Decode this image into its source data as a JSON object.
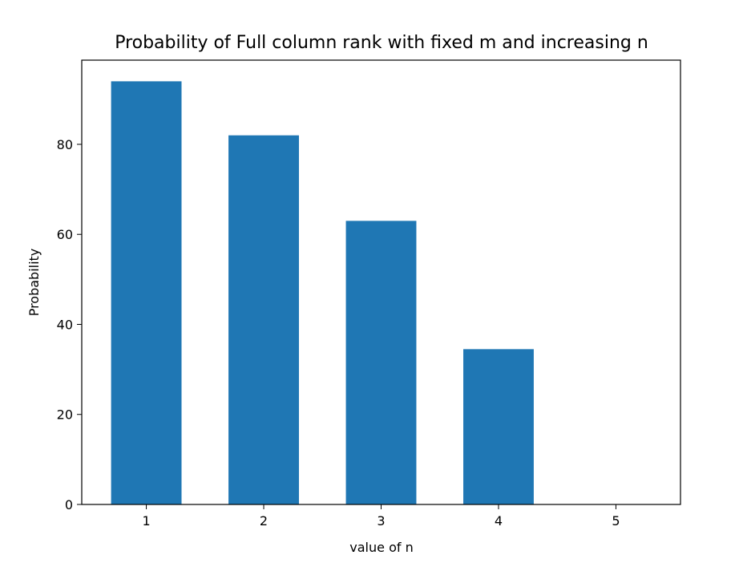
{
  "chart_data": {
    "type": "bar",
    "title": "Probability of Full column rank with fixed m and increasing n",
    "xlabel": "value of n",
    "ylabel": "Probability",
    "categories": [
      "1",
      "2",
      "3",
      "4",
      "5"
    ],
    "values": [
      94,
      82,
      63,
      34.5,
      0
    ],
    "xlim": [
      0.45,
      5.55
    ],
    "ylim": [
      0,
      98.7
    ],
    "yticks": [
      0,
      20,
      40,
      60,
      80
    ],
    "bar_width": 0.6,
    "bar_color": "#1f77b4",
    "grid": false,
    "legend": "none"
  }
}
